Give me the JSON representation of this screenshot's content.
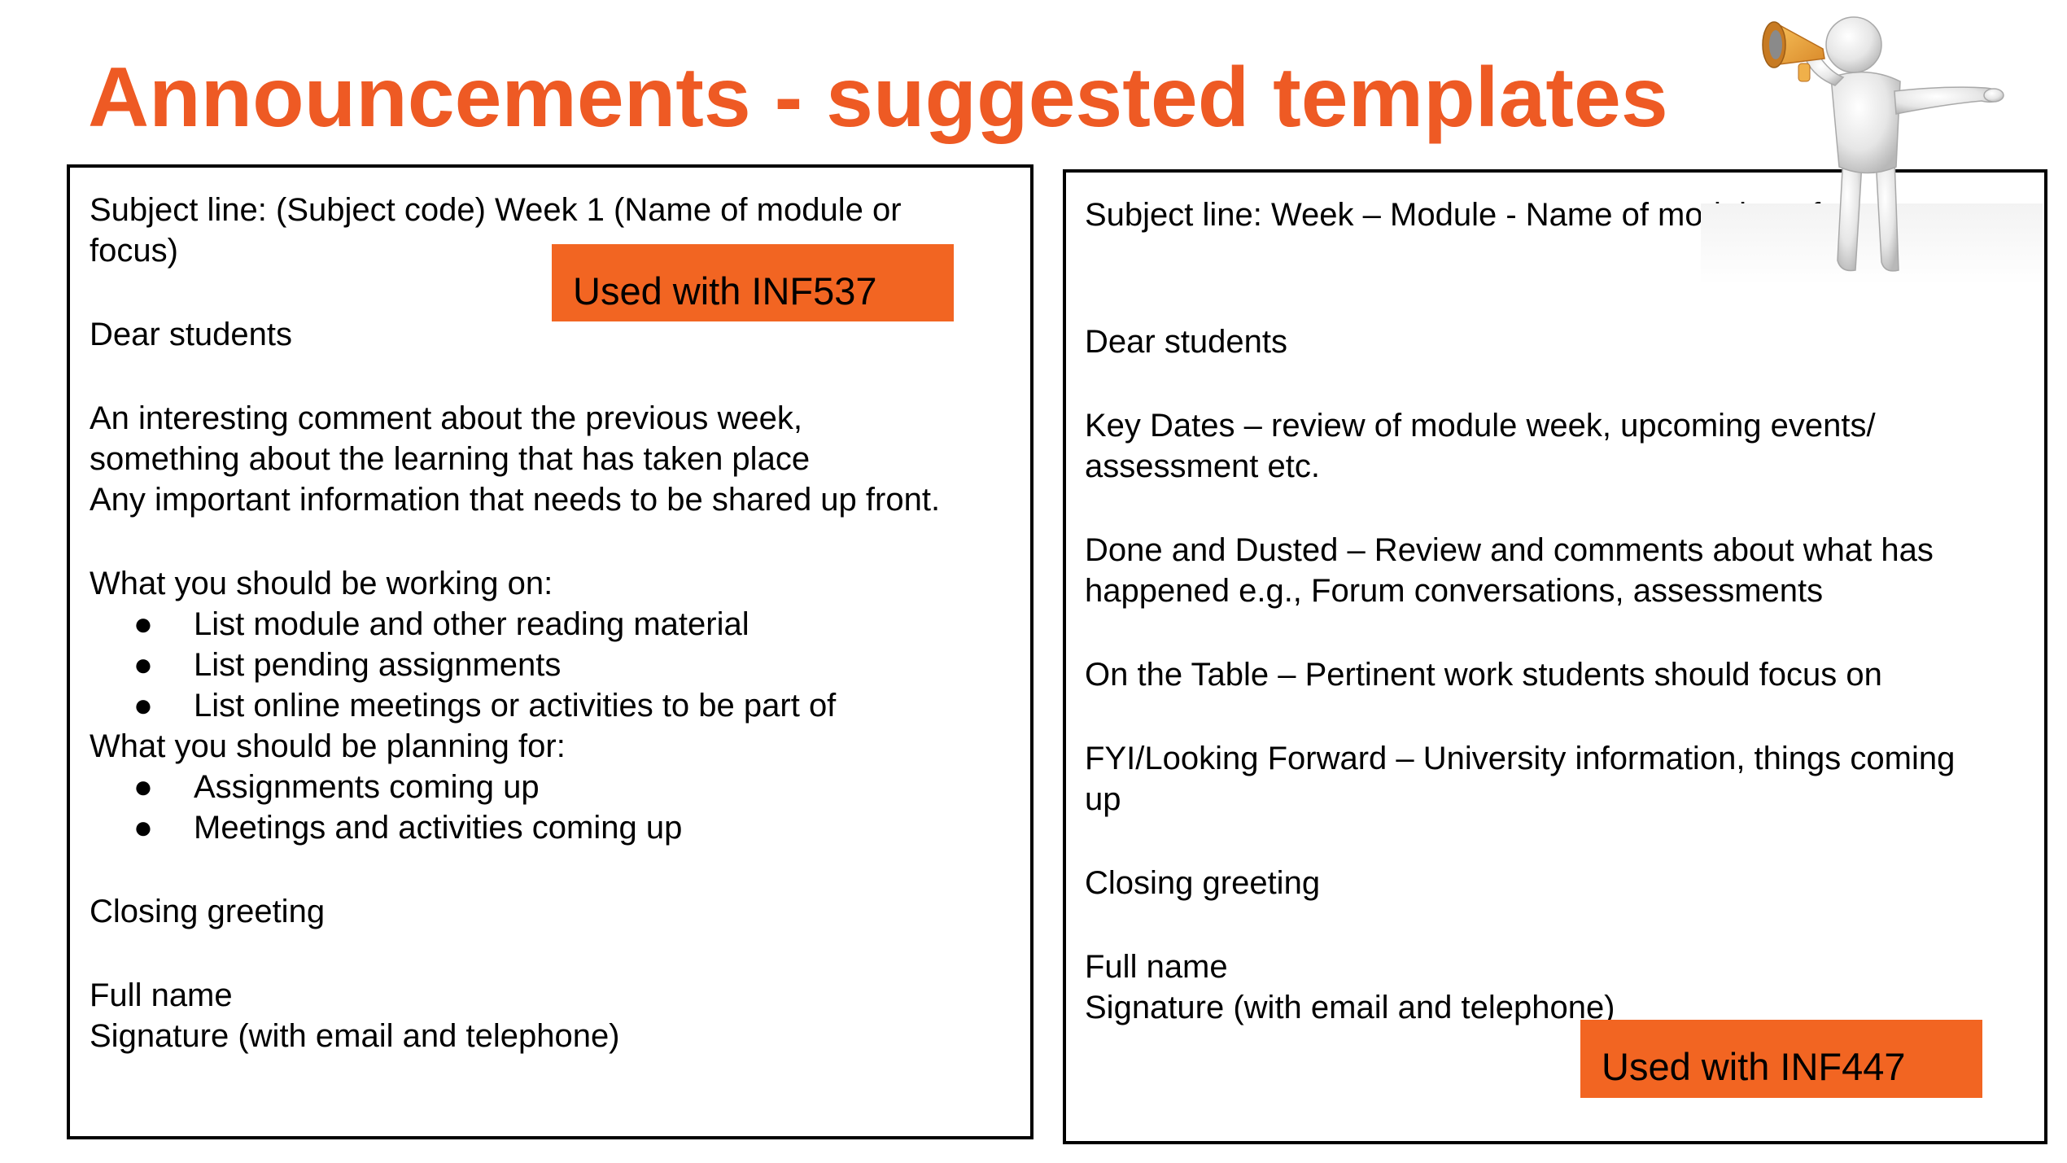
{
  "title": "Announcements - suggested templates",
  "colors": {
    "title": "#EE5A24",
    "tag_background": "#F26522",
    "border": "#000000"
  },
  "left_template": {
    "subject_line_1": "Subject line: (Subject code) Week 1 (Name of module or",
    "subject_line_2": "focus)",
    "greeting": "Dear students",
    "comment_1": "An interesting comment about the previous week,",
    "comment_2": "something about the learning that has taken place",
    "comment_3": "Any important information that needs to be shared up front.",
    "working_heading": "What you should be working on:",
    "working_items": [
      "List module and other reading material",
      "List pending assignments",
      "List online meetings or activities to be part of"
    ],
    "planning_heading": "What you should be planning for:",
    "planning_items": [
      "Assignments coming up",
      "Meetings and activities coming up"
    ],
    "closing": "Closing greeting",
    "full_name": "Full name",
    "signature": "Signature (with email and telephone)",
    "tag": "Used with INF537"
  },
  "right_template": {
    "subject_line": "Subject line: Week – Module - Name of module or focus",
    "greeting": "Dear students",
    "key_dates_1": "Key Dates – review of module week, upcoming events/",
    "key_dates_2": "assessment etc.",
    "done_1": "Done and Dusted – Review and comments about what has",
    "done_2": "happened e.g., Forum conversations, assessments",
    "on_table": "On the Table – Pertinent work students should focus on",
    "fyi_1": "FYI/Looking Forward – University information, things coming",
    "fyi_2": "up",
    "closing": "Closing greeting",
    "full_name": "Full name",
    "signature": "Signature (with email and telephone)",
    "tag": "Used with INF447"
  },
  "bullet": "●",
  "figure_icon": "person-with-megaphone-icon"
}
